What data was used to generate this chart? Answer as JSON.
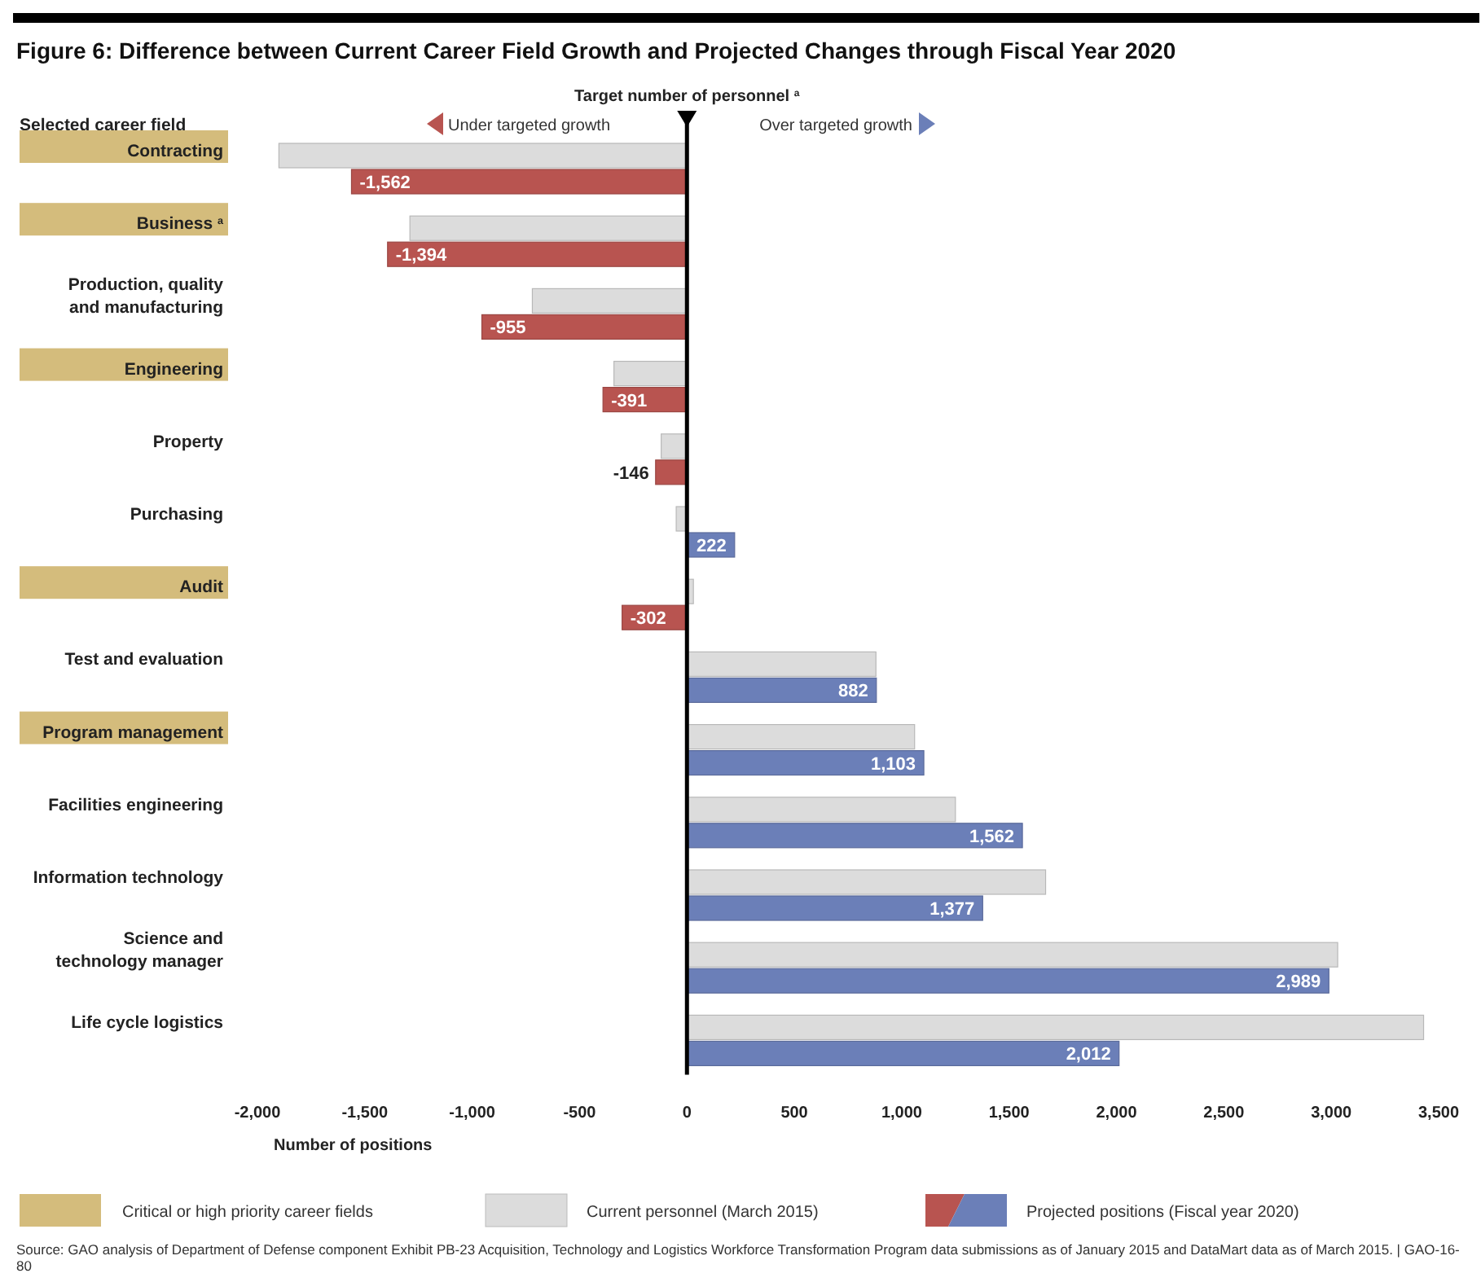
{
  "chart_data": {
    "type": "bar",
    "orientation": "horizontal",
    "title": "Figure 6: Difference between Current Career Field Growth and Projected Changes through Fiscal Year 2020",
    "ylabel": "Selected career field",
    "xlabel": "Number of positions",
    "categories": [
      "Contracting",
      "Business $^{a}$",
      "Production, quality and manufacturing",
      "Engineering",
      "Property",
      "Purchasing",
      "Audit",
      "Test and evaluation",
      "Program management",
      "Facilities engineering",
      "Information technology",
      "Science and technology manager",
      "Life cycle logistics"
    ],
    "series": [
      {
        "name": "Current personnel (March 2015)",
        "color": "#dcdcdc",
        "values": [
          -1900,
          -1290,
          -720,
          -340,
          -120,
          -50,
          30,
          880,
          1060,
          1250,
          1670,
          3030,
          3430
        ]
      },
      {
        "name": "Projected positions (Fiscal year 2020)",
        "color": "#6b7fb8",
        "colors": [
          "#b85450",
          "#b85450",
          "#b85450",
          "#b85450",
          "#b85450",
          "#6b7fb8",
          "#b85450",
          "#6b7fb8",
          "#6b7fb8",
          "#6b7fb8",
          "#6b7fb8",
          "#6b7fb8",
          "#6b7fb8"
        ],
        "values": [
          -1562,
          -1394,
          -955,
          -391,
          -146,
          222,
          -302,
          882,
          1103,
          1562,
          1377,
          2989,
          2012
        ],
        "value_labels": [
          "-1,562",
          "-1,394",
          "-955",
          "-391",
          "-146",
          "222",
          "-302",
          "882",
          "1,103",
          "1,562",
          "1,377",
          "2,989",
          "2,012"
        ]
      }
    ],
    "xlim": [
      -2000,
      3500
    ],
    "xticks": [
      {
        "value": -2000,
        "label": "-2,000"
      },
      {
        "value": -1500,
        "label": "-1,500"
      },
      {
        "value": -1000,
        "label": "-1,000"
      },
      -500,
      0,
      500,
      {
        "value": 1000,
        "label": "1,000"
      },
      {
        "value": 1500,
        "label": "1,500"
      },
      {
        "value": 2000,
        "label": "2,000"
      },
      {
        "value": 2500,
        "label": "2,500"
      },
      {
        "value": 3000,
        "label": "3,000"
      },
      {
        "value": 3500,
        "label": "3,500"
      }
    ],
    "ref_lines": [
      {
        "axis": "x",
        "value": 0,
        "label": "Target number of personnel $^{a}$",
        "color": "#000000"
      }
    ],
    "legend": "bottom",
    "annotations": [
      "Under targeted growth",
      "Over targeted growth",
      "Critical or high priority career fields",
      "Source: GAO analysis of Department of Defense component Exhibit PB-23 Acquisition, Technology and Logistics Workforce Transformation Program data submissions as of January 2015 and DataMart data as of March 2015.  |  GAO-16-80"
    ]
  }
}
